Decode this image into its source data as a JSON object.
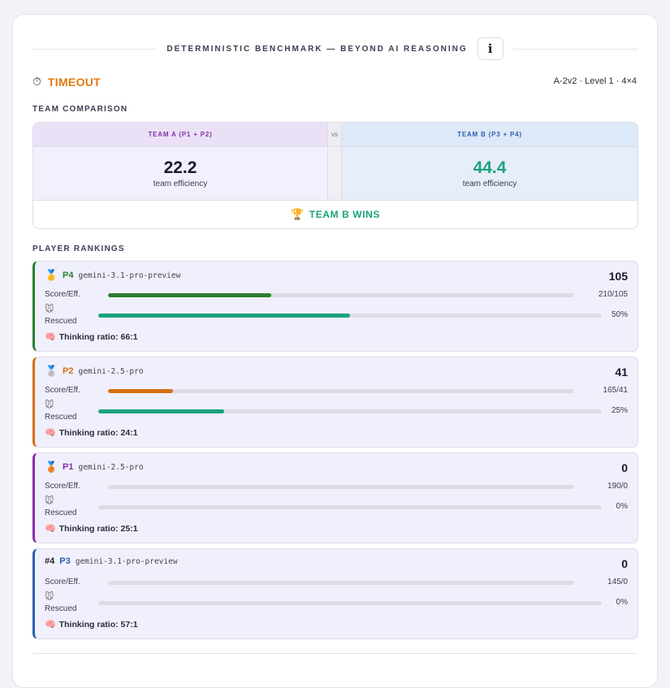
{
  "header": {
    "benchmark_title": "DETERMINISTIC BENCHMARK — BEYOND AI REASONING",
    "info_icon": "i"
  },
  "status": {
    "icon": "⏱",
    "icon_name": "stopwatch-icon",
    "label": "TIMEOUT",
    "color": "#e07a12"
  },
  "level_info": "A-2v2 · Level 1 · 4×4",
  "team_comparison": {
    "section_label": "TEAM COMPARISON",
    "team_a": {
      "label": "TEAM A (P1 + P2)",
      "efficiency": "22.2",
      "efficiency_label": "team efficiency"
    },
    "vs_label": "vs",
    "team_b": {
      "label": "TEAM B (P3 + P4)",
      "efficiency": "44.4",
      "efficiency_label": "team efficiency"
    },
    "winner_icon": "🏆",
    "winner_label": "TEAM B WINS"
  },
  "rankings": {
    "section_label": "PLAYER RANKINGS",
    "players": [
      {
        "rank_icon": "🥇",
        "rank_icon_name": "gold-medal-icon",
        "rank_text": "",
        "id": "P4",
        "id_color": "#2e7d32",
        "accent": "#2e7d32",
        "model": "gemini-3.1-pro-preview",
        "score": "105",
        "score_label": "Score/Eff.",
        "score_eff": "210/105",
        "score_fill": 0.35,
        "score_color": "#2e7d32",
        "rescued_icon": "🐭",
        "rescued_label": "Rescued",
        "rescued": "50%",
        "rescued_fill": 0.5,
        "thinking_icon": "🧠",
        "thinking": "Thinking ratio: 66:1"
      },
      {
        "rank_icon": "🥈",
        "rank_icon_name": "silver-medal-icon",
        "rank_text": "",
        "id": "P2",
        "id_color": "#d56f12",
        "accent": "#d56f12",
        "model": "gemini-2.5-pro",
        "score": "41",
        "score_label": "Score/Eff.",
        "score_eff": "165/41",
        "score_fill": 0.14,
        "score_color": "#d56f12",
        "rescued_icon": "🐭",
        "rescued_label": "Rescued",
        "rescued": "25%",
        "rescued_fill": 0.25,
        "thinking_icon": "🧠",
        "thinking": "Thinking ratio: 24:1"
      },
      {
        "rank_icon": "🥉",
        "rank_icon_name": "bronze-medal-icon",
        "rank_text": "",
        "id": "P1",
        "id_color": "#8a2ea6",
        "accent": "#8a2ea6",
        "model": "gemini-2.5-pro",
        "score": "0",
        "score_label": "Score/Eff.",
        "score_eff": "190/0",
        "score_fill": 0,
        "score_color": "#8a2ea6",
        "rescued_icon": "🐭",
        "rescued_label": "Rescued",
        "rescued": "0%",
        "rescued_fill": 0,
        "thinking_icon": "🧠",
        "thinking": "Thinking ratio: 25:1"
      },
      {
        "rank_icon": "",
        "rank_icon_name": "",
        "rank_text": "#4",
        "id": "P3",
        "id_color": "#2d5fae",
        "accent": "#2d5fae",
        "model": "gemini-3.1-pro-preview",
        "score": "0",
        "score_label": "Score/Eff.",
        "score_eff": "145/0",
        "score_fill": 0,
        "score_color": "#2d5fae",
        "rescued_icon": "🐭",
        "rescued_label": "Rescued",
        "rescued": "0%",
        "rescued_fill": 0,
        "thinking_icon": "🧠",
        "thinking": "Thinking ratio: 57:1"
      }
    ],
    "rescued_color": "#1ca27d"
  }
}
